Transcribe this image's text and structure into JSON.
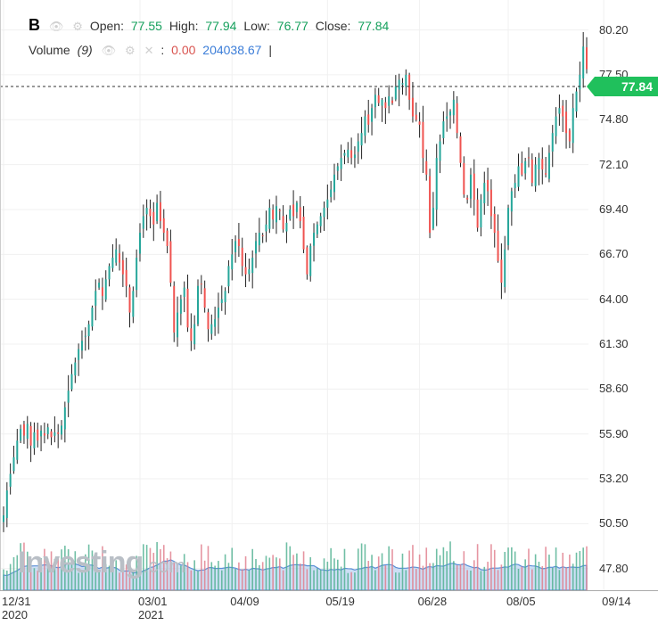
{
  "legend": {
    "ticker": "B",
    "open_label": "Open:",
    "open": "77.55",
    "high_label": "High:",
    "high": "77.94",
    "low_label": "Low:",
    "low": "76.77",
    "close_label": "Close:",
    "close": "77.84",
    "volume_label": "Volume",
    "volume_period": "(9)",
    "volume_value": "0.00",
    "volume_avg": "204038.67"
  },
  "price_tag": "77.84",
  "watermark": {
    "brand": "Investing",
    "suffix": ".com"
  },
  "colors": {
    "up": "#26a69a",
    "down": "#ef5350",
    "green_text": "#16a05d",
    "volume_area": "#90b8e8",
    "tag": "#20c05c"
  },
  "icons": [
    "eye-icon",
    "gear-icon",
    "close-icon"
  ],
  "chart_data": {
    "type": "candlestick",
    "y_ticks": [
      "80.20",
      "77.50",
      "74.80",
      "72.10",
      "69.40",
      "66.70",
      "64.00",
      "61.30",
      "58.60",
      "55.90",
      "53.20",
      "50.50",
      "47.80"
    ],
    "ylim": [
      46.5,
      82.0
    ],
    "x_ticks": [
      {
        "label": "12/31",
        "sub": "2020",
        "index": 0
      },
      {
        "label": "03/01",
        "sub": "2021",
        "index": 40
      },
      {
        "label": "04/09",
        "sub": "",
        "index": 67
      },
      {
        "label": "05/19",
        "sub": "",
        "index": 95
      },
      {
        "label": "06/28",
        "sub": "",
        "index": 122
      },
      {
        "label": "08/05",
        "sub": "",
        "index": 148
      },
      {
        "label": "09/14",
        "sub": "",
        "index": 176
      }
    ],
    "last_close": 77.84,
    "closes": [
      51.0,
      52.5,
      53.5,
      54.5,
      55.5,
      56.2,
      55.8,
      56.5,
      55.2,
      56.0,
      55.5,
      56.1,
      55.8,
      56.3,
      55.7,
      56.0,
      55.9,
      56.4,
      57.5,
      58.5,
      59.5,
      60.2,
      61.0,
      61.5,
      61.8,
      62.5,
      63.5,
      64.5,
      65.0,
      64.2,
      65.2,
      66.0,
      66.5,
      67.0,
      66.2,
      65.5,
      64.8,
      63.2,
      64.5,
      66.5,
      68.0,
      69.0,
      69.5,
      69.0,
      68.5,
      69.8,
      68.7,
      68.0,
      67.2,
      65.0,
      62.0,
      63.2,
      64.0,
      64.7,
      62.3,
      61.5,
      62.5,
      64.8,
      64.9,
      63.5,
      62.2,
      62.5,
      62.8,
      63.5,
      64.0,
      64.5,
      66.0,
      66.7,
      67.5,
      67.2,
      66.0,
      65.5,
      65.8,
      66.5,
      67.5,
      68.0,
      67.8,
      68.5,
      69.5,
      68.8,
      69.6,
      69.3,
      68.2,
      68.6,
      69.4,
      69.0,
      69.8,
      68.7,
      67.0,
      65.5,
      67.2,
      68.0,
      68.5,
      69.0,
      69.5,
      70.0,
      70.6,
      71.5,
      72.0,
      72.5,
      72.8,
      73.0,
      72.5,
      72.7,
      73.5,
      74.0,
      75.0,
      74.5,
      75.5,
      76.3,
      75.8,
      76.0,
      75.5,
      76.2,
      75.8,
      76.8,
      77.2,
      77.0,
      77.5,
      76.0,
      75.0,
      74.8,
      74.5,
      72.5,
      71.5,
      68.0,
      69.5,
      72.5,
      73.5,
      74.7,
      75.0,
      75.3,
      76.0,
      74.0,
      72.2,
      70.3,
      70.0,
      71.5,
      70.0,
      68.3,
      70.0,
      71.0,
      70.5,
      69.0,
      68.0,
      66.3,
      65.0,
      67.0,
      69.5,
      70.5,
      71.0,
      72.0,
      71.5,
      72.3,
      72.5,
      71.0,
      72.1,
      72.5,
      71.8,
      71.5,
      72.8,
      74.0,
      75.0,
      75.5,
      75.0,
      74.0,
      73.5,
      75.5,
      76.5,
      77.5,
      79.2,
      77.84
    ],
    "volume_avg": 204038.67
  }
}
